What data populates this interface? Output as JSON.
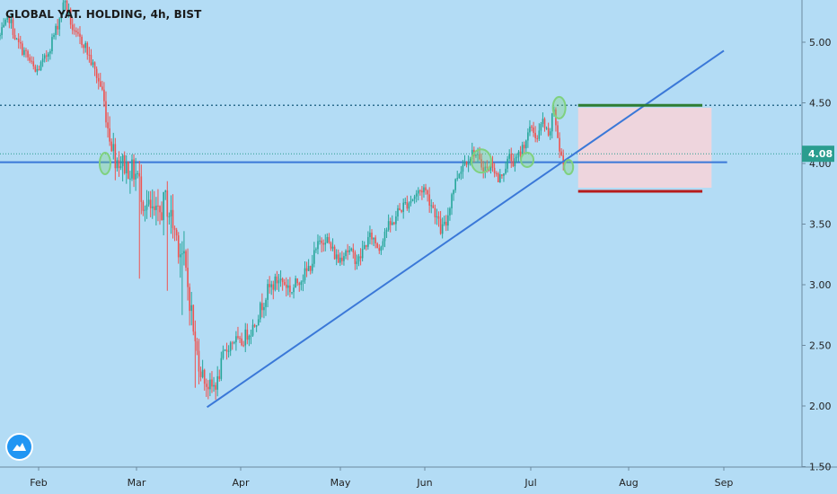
{
  "title": "GLOBAL YAT. HOLDING, 4h, BIST",
  "logo_icon": "tradingview-logo-icon",
  "colors": {
    "background": "#b3dcf5",
    "up_candle": "#26a69a",
    "down_candle": "#ef5350",
    "trendline": "#3a78d8",
    "dotted_line": "#2e6e8e",
    "current_line": "#2a9d8f",
    "target_line": "#2e7d32",
    "stop_line": "#b71c1c",
    "zone_fill": "#f8d3d8",
    "marker": "#7fd17f"
  },
  "chart_data": {
    "type": "candlestick",
    "ylim": [
      1.5,
      5.4
    ],
    "y_ticks": [
      "5.00",
      "4.50",
      "4.00",
      "3.50",
      "3.00",
      "2.50",
      "2.00",
      "1.50"
    ],
    "x_ticks": [
      "Feb",
      "Mar",
      "Apr",
      "May",
      "Jun",
      "Jul",
      "Aug",
      "Sep"
    ],
    "last_price": "4.08",
    "waypoints": [
      [
        0,
        5.05
      ],
      [
        5,
        5.2
      ],
      [
        9,
        5.0
      ],
      [
        14,
        4.9
      ],
      [
        19,
        4.75
      ],
      [
        24,
        4.85
      ],
      [
        30,
        5.1
      ],
      [
        35,
        5.35
      ],
      [
        40,
        5.05
      ],
      [
        45,
        5.0
      ],
      [
        50,
        4.8
      ],
      [
        55,
        4.6
      ],
      [
        58,
        4.3
      ],
      [
        62,
        4.05
      ],
      [
        66,
        4.0
      ],
      [
        70,
        3.95
      ],
      [
        74,
        3.9
      ],
      [
        77,
        3.7
      ],
      [
        81,
        3.6
      ],
      [
        85,
        3.55
      ],
      [
        89,
        3.7
      ],
      [
        92,
        3.55
      ],
      [
        95,
        3.4
      ],
      [
        98,
        3.25
      ],
      [
        102,
        2.9
      ],
      [
        105,
        2.5
      ],
      [
        108,
        2.3
      ],
      [
        111,
        2.18
      ],
      [
        114,
        2.15
      ],
      [
        117,
        2.2
      ],
      [
        120,
        2.4
      ],
      [
        123,
        2.5
      ],
      [
        126,
        2.55
      ],
      [
        129,
        2.5
      ],
      [
        133,
        2.6
      ],
      [
        136,
        2.65
      ],
      [
        140,
        2.8
      ],
      [
        144,
        2.95
      ],
      [
        147,
        3.0
      ],
      [
        150,
        3.05
      ],
      [
        154,
        3.0
      ],
      [
        157,
        2.95
      ],
      [
        161,
        3.05
      ],
      [
        165,
        3.1
      ],
      [
        168,
        3.2
      ],
      [
        172,
        3.35
      ],
      [
        175,
        3.4
      ],
      [
        178,
        3.3
      ],
      [
        182,
        3.2
      ],
      [
        186,
        3.3
      ],
      [
        189,
        3.25
      ],
      [
        193,
        3.2
      ],
      [
        197,
        3.35
      ],
      [
        200,
        3.4
      ],
      [
        204,
        3.3
      ],
      [
        207,
        3.45
      ],
      [
        211,
        3.5
      ],
      [
        214,
        3.6
      ],
      [
        217,
        3.65
      ],
      [
        221,
        3.7
      ],
      [
        224,
        3.75
      ],
      [
        228,
        3.8
      ],
      [
        231,
        3.7
      ],
      [
        234,
        3.6
      ],
      [
        237,
        3.45
      ],
      [
        240,
        3.5
      ],
      [
        243,
        3.75
      ],
      [
        246,
        3.9
      ],
      [
        249,
        4.0
      ],
      [
        252,
        4.05
      ],
      [
        255,
        4.1
      ],
      [
        258,
        4.0
      ],
      [
        262,
        3.95
      ],
      [
        265,
        4.0
      ],
      [
        268,
        3.85
      ],
      [
        271,
        3.95
      ],
      [
        274,
        4.05
      ],
      [
        277,
        4.0
      ],
      [
        280,
        4.1
      ],
      [
        283,
        4.2
      ],
      [
        286,
        4.3
      ],
      [
        289,
        4.2
      ],
      [
        292,
        4.35
      ],
      [
        295,
        4.2
      ],
      [
        298,
        4.45
      ],
      [
        301,
        4.1
      ],
      [
        303,
        4.0
      ]
    ],
    "volatility_anchors": [
      [
        0,
        0.1
      ],
      [
        55,
        0.12
      ],
      [
        60,
        0.2
      ],
      [
        90,
        0.25
      ],
      [
        100,
        0.3
      ],
      [
        110,
        0.14
      ],
      [
        303,
        0.1
      ]
    ],
    "spikes": [
      [
        70,
        3.75
      ],
      [
        75,
        3.05
      ],
      [
        90,
        2.95
      ],
      [
        98,
        2.75
      ],
      [
        105,
        2.15
      ]
    ],
    "horizontal_levels": [
      {
        "name": "resistance-dotted",
        "value": 4.48,
        "style": "dotted"
      },
      {
        "name": "support",
        "value": 4.01,
        "style": "solid"
      },
      {
        "name": "current-price",
        "value": 4.08,
        "style": "dotted"
      }
    ],
    "trendlines": [
      {
        "from": [
          "Mar 22",
          1.99
        ],
        "to": [
          "Sep 1",
          4.93
        ]
      }
    ],
    "target_level": 4.48,
    "stop_level": 3.77,
    "risk_zone": {
      "top": 4.46,
      "bottom": 3.8
    }
  }
}
